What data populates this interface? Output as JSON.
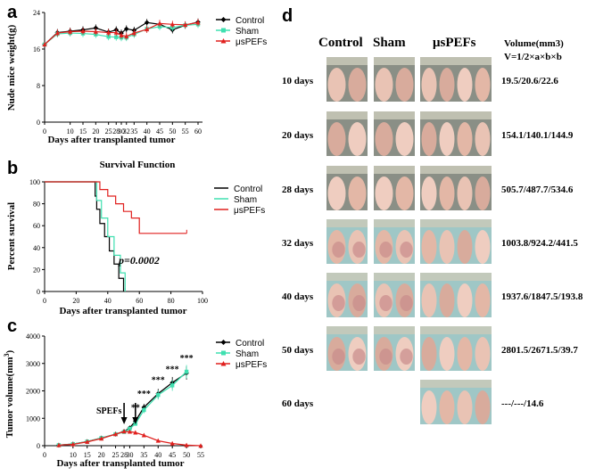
{
  "figure": {
    "panel_labels": [
      "a",
      "b",
      "c",
      "d"
    ],
    "colors": {
      "control": "#000000",
      "sham": "#3fe0b0",
      "uspefs": "#e0201e"
    }
  },
  "chart_data": [
    {
      "panel": "a",
      "type": "line",
      "title": "",
      "xlabel": "Days after transplanted tumor",
      "ylabel": "Nude mice weight(g)",
      "xlim": [
        0,
        60
      ],
      "ylim": [
        0,
        24
      ],
      "x_ticks": [
        0,
        10,
        15,
        20,
        25,
        28,
        30,
        32,
        35,
        40,
        45,
        50,
        55,
        60
      ],
      "y_ticks": [
        0,
        8,
        16,
        24
      ],
      "x": [
        0,
        5,
        10,
        15,
        20,
        25,
        28,
        30,
        32,
        35,
        40,
        45,
        50,
        55,
        60
      ],
      "series": [
        {
          "name": "Control",
          "values": [
            17,
            19.6,
            19.9,
            20.2,
            20.6,
            19.7,
            20.2,
            19.5,
            20.4,
            20.1,
            21.8,
            21.4,
            20.2,
            21.2,
            21.9
          ]
        },
        {
          "name": "Sham",
          "values": [
            17,
            19.3,
            19.5,
            19.4,
            19.2,
            18.7,
            18.6,
            18.5,
            18.5,
            19.2,
            20.4,
            20.9,
            20.7,
            21.2,
            21.4
          ]
        },
        {
          "name": "μsPEFs",
          "values": [
            17,
            19.5,
            19.8,
            19.9,
            19.8,
            19.6,
            19.6,
            19,
            18.8,
            19.5,
            20.3,
            21.6,
            21.4,
            21.3,
            21.8
          ]
        }
      ]
    },
    {
      "panel": "b",
      "type": "line",
      "title": "Survival Function",
      "xlabel": "Days after transplanted tumor",
      "ylabel": "Percent survival",
      "xlim": [
        0,
        100
      ],
      "ylim": [
        0,
        100
      ],
      "x_ticks": [
        0,
        20,
        40,
        60,
        80,
        100
      ],
      "y_ticks": [
        0,
        20,
        40,
        60,
        80,
        100
      ],
      "annotation": "p=0.0002",
      "series": [
        {
          "name": "Control",
          "x": [
            0,
            32,
            33,
            35,
            38,
            41,
            44,
            47,
            50
          ],
          "values": [
            100,
            87,
            75,
            62,
            50,
            37,
            25,
            12,
            0
          ]
        },
        {
          "name": "Sham",
          "x": [
            0,
            33,
            36,
            40,
            44,
            48,
            51
          ],
          "values": [
            100,
            83,
            67,
            50,
            33,
            17,
            0
          ]
        },
        {
          "name": "μsPEFs",
          "x": [
            0,
            35,
            40,
            45,
            50,
            55,
            60,
            90
          ],
          "values": [
            100,
            93,
            87,
            80,
            73,
            67,
            53,
            53
          ]
        }
      ]
    },
    {
      "panel": "c",
      "type": "line",
      "title": "",
      "xlabel": "Days after transplanted tumor",
      "ylabel": "Tumor volume(mm",
      "ylabel_sup": "3",
      "ylabel_end": ")",
      "xlim": [
        0,
        55
      ],
      "ylim": [
        0,
        4000
      ],
      "x_ticks": [
        0,
        10,
        15,
        20,
        25,
        28,
        30,
        35,
        40,
        45,
        50,
        55
      ],
      "y_ticks": [
        0,
        1000,
        2000,
        3000,
        4000
      ],
      "arrow_label": "SPEFs",
      "arrows_at": [
        28,
        32
      ],
      "significance": [
        {
          "x": 32,
          "label": "**"
        },
        {
          "x": 35,
          "label": "***"
        },
        {
          "x": 40,
          "label": "***"
        },
        {
          "x": 45,
          "label": "***"
        },
        {
          "x": 50,
          "label": "***"
        }
      ],
      "x": [
        5,
        10,
        15,
        20,
        25,
        28,
        30,
        32,
        35,
        40,
        45,
        50,
        55
      ],
      "series": [
        {
          "name": "Control",
          "values": [
            20,
            60,
            150,
            280,
            420,
            520,
            650,
            900,
            1400,
            1900,
            2300,
            2650,
            null
          ]
        },
        {
          "name": "Sham",
          "values": [
            20,
            60,
            150,
            280,
            420,
            500,
            620,
            800,
            1300,
            1850,
            2200,
            2700,
            null
          ]
        },
        {
          "name": "μsPEFs",
          "values": [
            20,
            50,
            140,
            260,
            420,
            520,
            510,
            480,
            380,
            180,
            80,
            20,
            0
          ]
        }
      ]
    }
  ],
  "panel_d": {
    "headers": {
      "control": "Control",
      "sham": "Sham",
      "uspefs": "μsPEFs",
      "volume": "Volume(mm3)",
      "formula": "V=1/2×a×b×b"
    },
    "rows": [
      {
        "day": "10 days",
        "volume": "19.5/20.6/22.6"
      },
      {
        "day": "20 days",
        "volume": "154.1/140.1/144.9"
      },
      {
        "day": "28 days",
        "volume": "505.7/487.7/534.6"
      },
      {
        "day": "32 days",
        "volume": "1003.8/924.2/441.5"
      },
      {
        "day": "40 days",
        "volume": "1937.6/1847.5/193.8"
      },
      {
        "day": "50 days",
        "volume": "2801.5/2671.5/39.7"
      },
      {
        "day": "60 days",
        "volume": "---/---/14.6"
      }
    ]
  }
}
